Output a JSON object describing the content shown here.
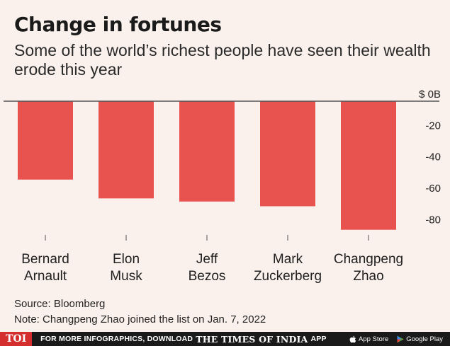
{
  "header": {
    "title": "Change in fortunes",
    "subtitle": "Some of the world’s richest people have seen their wealth erode this year"
  },
  "chart_data": {
    "type": "bar",
    "categories": [
      [
        "Bernard",
        "Arnault"
      ],
      [
        "Elon",
        "Musk"
      ],
      [
        "Jeff",
        "Bezos"
      ],
      [
        "Mark",
        "Zuckerberg"
      ],
      [
        "Changpeng",
        "Zhao"
      ]
    ],
    "values": [
      -50,
      -62,
      -64,
      -67,
      -82
    ],
    "ylim": [
      -88,
      0
    ],
    "yticks": [
      0,
      -20,
      -40,
      -60,
      -80
    ],
    "ytick_labels": [
      "$ 0B",
      "-20",
      "-40",
      "-60",
      "-80"
    ],
    "bar_color": "#e8524f",
    "axis_position": "right",
    "grid": false
  },
  "footer": {
    "source": "Source: Bloomberg",
    "note": "Note: Changpeng Zhao joined the list on Jan. 7, 2022",
    "logo": "TOI",
    "promo_text": "FOR MORE INFOGRAPHICS, DOWNLOAD",
    "brand": "THE TIMES OF INDIA",
    "app_word": "APP",
    "app_store": "App Store",
    "google_play": "Google Play"
  }
}
